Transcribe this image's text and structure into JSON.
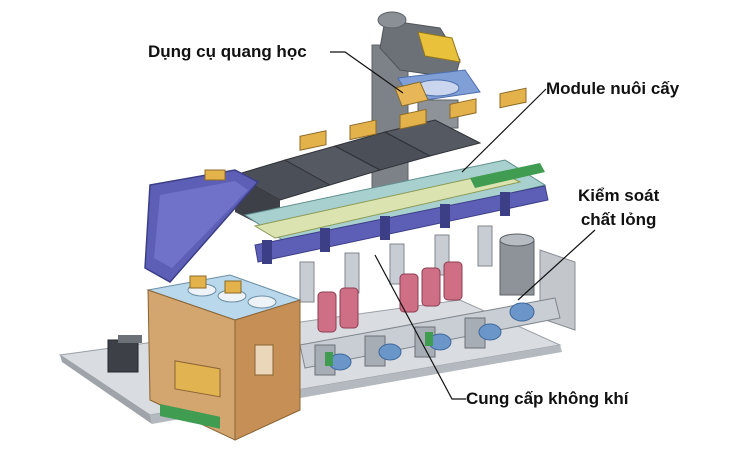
{
  "labels": {
    "optics": "Dụng cụ quang học",
    "culture_module": "Module nuôi cấy",
    "fluid_control_line1": "Kiểm soát",
    "fluid_control_line2": "chất lỏng",
    "air_supply": "Cung cấp không khí"
  },
  "colors": {
    "frame_gray": "#8a8f96",
    "lid_purple": "#5d5fb7",
    "panel_wood": "#d3a56f",
    "cover_dark": "#4b4f57",
    "bottle_pink": "#cf6f86",
    "motor_blue": "#6b96c9",
    "pcb_green": "#3f9c51",
    "accent_yellow": "#e5b83b"
  }
}
